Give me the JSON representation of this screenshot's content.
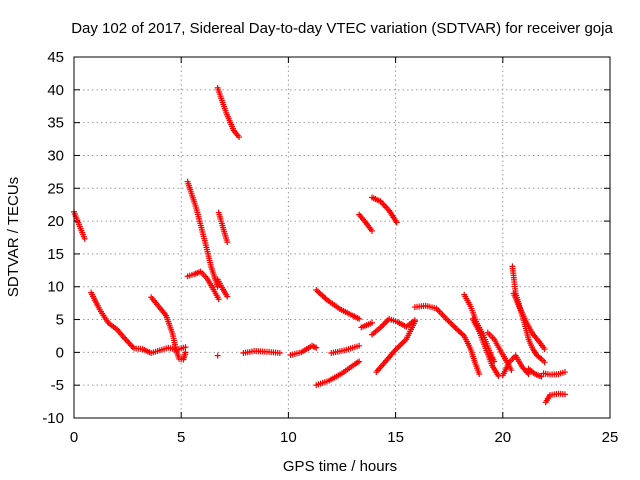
{
  "chart_data": {
    "type": "scatter",
    "title": "Day 102 of 2017, Sidereal Day-to-day VTEC variation (SDTVAR) for receiver goja",
    "xlabel": "GPS time / hours",
    "ylabel": "SDTVAR / TECUs",
    "xlim": [
      0,
      25
    ],
    "ylim": [
      -10,
      45
    ],
    "xticks": [
      0,
      5,
      10,
      15,
      20,
      25
    ],
    "yticks": [
      -10,
      -5,
      0,
      5,
      10,
      15,
      20,
      25,
      30,
      35,
      40,
      45
    ],
    "grid": true,
    "legend": "none",
    "marker": "plus",
    "color": "#ff0000",
    "segments": [
      {
        "points": [
          [
            0.0,
            21.4
          ],
          [
            0.5,
            17.3
          ]
        ]
      },
      {
        "points": [
          [
            0.8,
            9.1
          ],
          [
            1.2,
            6.5
          ],
          [
            1.6,
            4.5
          ],
          [
            2.0,
            3.5
          ],
          [
            2.4,
            2.0
          ],
          [
            2.8,
            0.6
          ],
          [
            3.2,
            0.5
          ],
          [
            3.6,
            -0.1
          ],
          [
            4.0,
            0.3
          ],
          [
            4.4,
            0.7
          ],
          [
            4.8,
            0.4
          ],
          [
            5.2,
            0.8
          ]
        ]
      },
      {
        "points": [
          [
            3.6,
            8.4
          ],
          [
            4.0,
            6.8
          ],
          [
            4.3,
            5.6
          ],
          [
            4.6,
            2.8
          ],
          [
            4.75,
            0.5
          ],
          [
            4.9,
            -1.0
          ],
          [
            5.1,
            -1.1
          ],
          [
            5.2,
            0.0
          ]
        ]
      },
      {
        "points": [
          [
            5.3,
            11.6
          ],
          [
            5.6,
            11.9
          ],
          [
            5.9,
            12.3
          ],
          [
            6.2,
            11.3
          ],
          [
            6.5,
            9.6
          ],
          [
            6.75,
            8.1
          ]
        ]
      },
      {
        "points": [
          [
            5.3,
            26.0
          ],
          [
            5.7,
            22.0
          ],
          [
            6.1,
            17.0
          ],
          [
            6.4,
            13.0
          ],
          [
            6.7,
            10.0
          ]
        ]
      },
      {
        "points": [
          [
            6.7,
            40.3
          ],
          [
            7.1,
            36.5
          ],
          [
            7.45,
            33.8
          ],
          [
            7.7,
            32.8
          ]
        ]
      },
      {
        "points": [
          [
            6.75,
            21.3
          ],
          [
            6.95,
            19.0
          ],
          [
            7.15,
            16.8
          ]
        ]
      },
      {
        "points": [
          [
            6.7,
            11.1
          ],
          [
            6.95,
            9.6
          ],
          [
            7.15,
            8.5
          ]
        ]
      },
      {
        "points": [
          [
            6.7,
            -0.5
          ]
        ]
      },
      {
        "points": [
          [
            7.9,
            -0.1
          ],
          [
            8.4,
            0.2
          ],
          [
            9.0,
            0.1
          ],
          [
            9.6,
            -0.1
          ]
        ]
      },
      {
        "points": [
          [
            10.1,
            -0.4
          ],
          [
            10.6,
            0.0
          ],
          [
            11.1,
            1.0
          ],
          [
            11.3,
            0.7
          ]
        ]
      },
      {
        "points": [
          [
            11.3,
            9.5
          ],
          [
            11.8,
            8.0
          ],
          [
            12.4,
            6.6
          ],
          [
            13.0,
            5.6
          ],
          [
            13.3,
            5.1
          ]
        ]
      },
      {
        "points": [
          [
            11.3,
            -5.0
          ],
          [
            11.9,
            -4.3
          ],
          [
            12.5,
            -3.2
          ],
          [
            13.1,
            -1.8
          ],
          [
            13.3,
            -1.4
          ]
        ]
      },
      {
        "points": [
          [
            12.0,
            -0.1
          ],
          [
            12.6,
            0.3
          ],
          [
            13.1,
            0.8
          ],
          [
            13.3,
            1.0
          ]
        ]
      },
      {
        "points": [
          [
            13.3,
            21.0
          ],
          [
            13.6,
            19.8
          ],
          [
            13.9,
            18.5
          ]
        ]
      },
      {
        "points": [
          [
            13.4,
            3.8
          ],
          [
            13.9,
            4.5
          ]
        ]
      },
      {
        "points": [
          [
            13.9,
            23.6
          ],
          [
            14.3,
            23.0
          ],
          [
            14.7,
            21.6
          ],
          [
            15.05,
            19.8
          ]
        ]
      },
      {
        "points": [
          [
            13.9,
            2.7
          ],
          [
            14.3,
            3.8
          ],
          [
            14.7,
            5.1
          ],
          [
            15.1,
            4.6
          ],
          [
            15.5,
            3.9
          ],
          [
            15.9,
            4.9
          ]
        ]
      },
      {
        "points": [
          [
            14.1,
            -3.0
          ],
          [
            14.5,
            -1.5
          ],
          [
            15.0,
            0.4
          ],
          [
            15.5,
            2.0
          ],
          [
            15.9,
            4.7
          ]
        ]
      },
      {
        "points": [
          [
            15.9,
            6.9
          ],
          [
            16.4,
            7.1
          ],
          [
            16.9,
            6.7
          ],
          [
            17.4,
            5.0
          ],
          [
            17.8,
            3.7
          ],
          [
            18.2,
            2.5
          ],
          [
            18.5,
            0.5
          ],
          [
            18.7,
            -1.5
          ],
          [
            18.9,
            -3.3
          ]
        ]
      },
      {
        "points": [
          [
            18.2,
            8.8
          ],
          [
            18.5,
            7.0
          ],
          [
            18.8,
            4.4
          ],
          [
            19.1,
            2.6
          ],
          [
            19.4,
            0.0
          ],
          [
            19.6,
            -1.4
          ]
        ]
      },
      {
        "points": [
          [
            18.6,
            5.1
          ],
          [
            18.9,
            3.2
          ],
          [
            19.2,
            0.6
          ],
          [
            19.5,
            -2.0
          ],
          [
            19.8,
            -3.6
          ]
        ]
      },
      {
        "points": [
          [
            19.3,
            3.0
          ],
          [
            19.6,
            2.0
          ],
          [
            19.9,
            0.2
          ],
          [
            20.2,
            -1.5
          ],
          [
            20.4,
            -2.7
          ]
        ]
      },
      {
        "points": [
          [
            20.0,
            -3.5
          ],
          [
            20.3,
            -1.5
          ],
          [
            20.6,
            -0.5
          ],
          [
            20.9,
            -2.2
          ],
          [
            21.2,
            -3.3
          ]
        ]
      },
      {
        "points": [
          [
            20.45,
            13.1
          ],
          [
            20.6,
            9.0
          ],
          [
            20.8,
            6.8
          ],
          [
            21.0,
            4.6
          ],
          [
            21.2,
            2.0
          ],
          [
            21.4,
            0.5
          ],
          [
            21.6,
            -0.5
          ],
          [
            21.8,
            -1.0
          ],
          [
            21.95,
            -1.5
          ]
        ]
      },
      {
        "points": [
          [
            20.5,
            9.0
          ],
          [
            20.8,
            6.7
          ],
          [
            21.1,
            4.6
          ],
          [
            21.4,
            2.8
          ],
          [
            21.7,
            1.6
          ],
          [
            21.95,
            0.5
          ]
        ]
      },
      {
        "points": [
          [
            21.2,
            -2.5
          ],
          [
            21.5,
            -3.3
          ],
          [
            21.8,
            -3.7
          ]
        ]
      },
      {
        "points": [
          [
            21.9,
            -3.2
          ],
          [
            22.2,
            -3.4
          ],
          [
            22.6,
            -3.3
          ],
          [
            22.9,
            -3.0
          ]
        ]
      },
      {
        "points": [
          [
            22.0,
            -7.6
          ],
          [
            22.2,
            -6.5
          ],
          [
            22.6,
            -6.3
          ],
          [
            22.9,
            -6.4
          ]
        ]
      }
    ]
  }
}
